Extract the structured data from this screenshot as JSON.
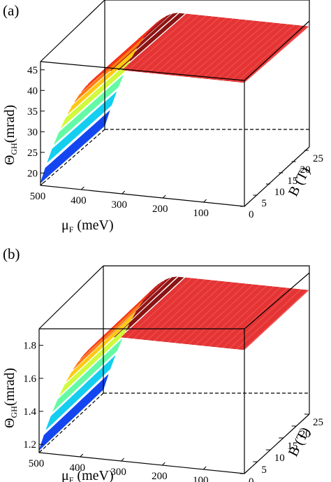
{
  "chart_data": [
    {
      "type": "surface3d",
      "panel_label": "(a)",
      "xlabel": "μ",
      "xlabel_sub": "F",
      "xlabel_unit": " (meV)",
      "ylabel": "B (T)",
      "zlabel": "Θ",
      "zlabel_sub": "GH",
      "zlabel_unit": "(mrad)",
      "xlim": [
        500,
        0
      ],
      "ylim": [
        0,
        25
      ],
      "zlim": [
        17,
        47
      ],
      "x_ticks": [
        "500",
        "400",
        "300",
        "200",
        "100"
      ],
      "y_ticks": [
        "0",
        "5",
        "10",
        "15",
        "20",
        "25"
      ],
      "z_ticks": [
        "20",
        "25",
        "30",
        "35",
        "40",
        "45"
      ],
      "z_tick_values": [
        20,
        25,
        30,
        35,
        40,
        45
      ],
      "surface": {
        "z_min": 17,
        "z_max": 47,
        "colormap": "jet",
        "saturation_mu": 300
      }
    },
    {
      "type": "surface3d",
      "panel_label": "(b)",
      "xlabel": "μ",
      "xlabel_sub": "F",
      "xlabel_unit": " (meV)",
      "ylabel": "B (T)",
      "zlabel": "Θ",
      "zlabel_sub": "GH",
      "zlabel_unit": "(mrad)",
      "xlim": [
        500,
        0
      ],
      "ylim": [
        0,
        25
      ],
      "zlim": [
        1.15,
        1.9
      ],
      "x_ticks": [
        "500",
        "400",
        "300",
        "200",
        "100"
      ],
      "y_ticks": [
        "0",
        "5",
        "10",
        "15",
        "20",
        "25"
      ],
      "z_ticks": [
        "1.2",
        "1.4",
        "1.6",
        "1.8"
      ],
      "z_tick_values": [
        1.2,
        1.4,
        1.6,
        1.8
      ],
      "surface": {
        "z_min": 1.15,
        "z_max": 1.9,
        "colormap": "jet",
        "saturation_mu": 300
      }
    }
  ]
}
